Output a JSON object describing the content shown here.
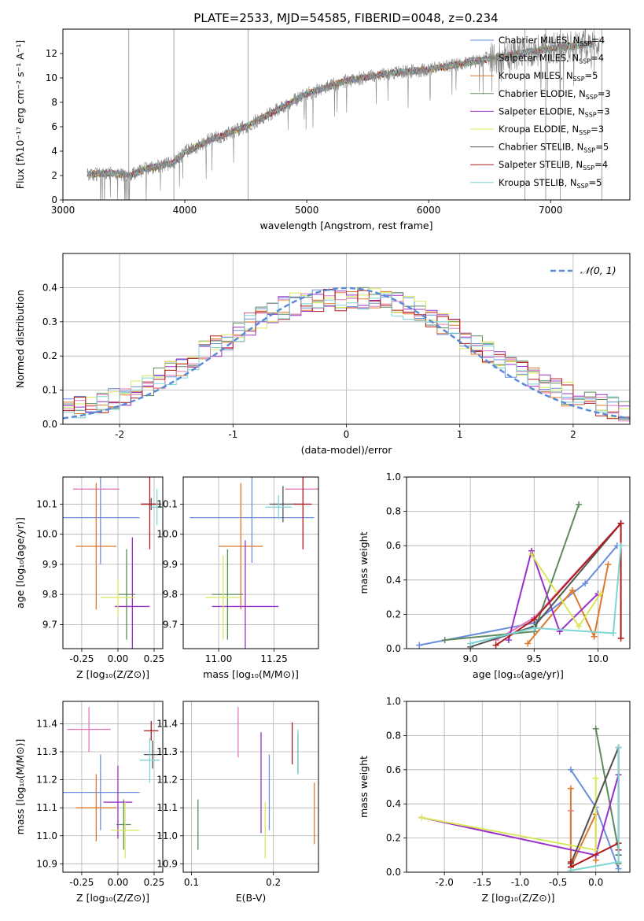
{
  "figure_title": "PLATE=2533, MJD=54585, FIBERID=0048, z=0.234",
  "model_names": [
    "Chabrier MILES",
    "Salpeter MILES",
    "Kroupa MILES",
    "Chabrier ELODIE",
    "Salpeter ELODIE",
    "Kroupa ELODIE",
    "Chabrier STELIB",
    "Salpeter STELIB",
    "Kroupa STELIB"
  ],
  "model_colors": [
    "#6a8fdc",
    "#777777",
    "#e0782a",
    "#5e8a5e",
    "#9b30c9",
    "#d8e85a",
    "#555555",
    "#b01a1a",
    "#7fd4d4"
  ],
  "chart_data": [
    {
      "panel": "spectrum",
      "type": "line",
      "xlabel": "wavelength [Angstrom, rest frame]",
      "ylabel": "Flux [fλ10⁻¹⁷ erg cm⁻² s⁻¹ A⁻¹]",
      "xlim": [
        3000,
        7650
      ],
      "ylim": [
        0,
        14
      ],
      "xticks": [
        3000,
        4000,
        5000,
        6000,
        7000
      ],
      "yticks": [
        0,
        2,
        4,
        6,
        8,
        10,
        12
      ],
      "grid": false,
      "legend_position": "top-right",
      "legend": [
        {
          "label": "Chabrier MILES, N",
          "sub": "SSP",
          "suffix": "=4"
        },
        {
          "label": "Salpeter MILES, N",
          "sub": "SSP",
          "suffix": "=4"
        },
        {
          "label": "Kroupa MILES, N",
          "sub": "SSP",
          "suffix": "=5"
        },
        {
          "label": "Chabrier ELODIE, N",
          "sub": "SSP",
          "suffix": "=3"
        },
        {
          "label": "Salpeter ELODIE, N",
          "sub": "SSP",
          "suffix": "=3"
        },
        {
          "label": "Kroupa ELODIE, N",
          "sub": "SSP",
          "suffix": "=3"
        },
        {
          "label": "Chabrier STELIB, N",
          "sub": "SSP",
          "suffix": "=5"
        },
        {
          "label": "Salpeter STELIB, N",
          "sub": "SSP",
          "suffix": "=4"
        },
        {
          "label": "Kroupa STELIB, N",
          "sub": "SSP",
          "suffix": "=5"
        }
      ],
      "continuum": {
        "x": [
          3200,
          3400,
          3550,
          3700,
          3900,
          4000,
          4200,
          4500,
          4800,
          5000,
          5300,
          5600,
          6000,
          6300,
          6600,
          7000,
          7350
        ],
        "y": [
          2.1,
          2.2,
          2.0,
          2.6,
          3.0,
          3.9,
          4.9,
          6.0,
          7.6,
          8.7,
          9.7,
          10.3,
          10.7,
          11.2,
          11.8,
          12.4,
          12.8
        ]
      }
    },
    {
      "panel": "residuals",
      "type": "histogram",
      "xlabel": "(data-model)/error",
      "ylabel": "Normed distribution",
      "xlim": [
        -2.5,
        2.5
      ],
      "ylim": [
        0,
        0.5
      ],
      "xticks": [
        -2,
        -1,
        0,
        1,
        2
      ],
      "yticks": [
        0.0,
        0.1,
        0.2,
        0.3,
        0.4
      ],
      "grid": true,
      "legend_position": "top-right",
      "reference_curve": {
        "label": "𝒩(0, 1)",
        "mean": 0,
        "sigma": 1
      },
      "bins": {
        "start": -2.5,
        "width": 0.1,
        "count": 50
      }
    },
    {
      "panel": "age_vs_Z",
      "type": "errorbar",
      "xlabel": "Z [log₁₀(Z/Z⊙)]",
      "ylabel": "age  [log₁₀(age/yr)]",
      "xlim": [
        -0.38,
        0.31
      ],
      "ylim": [
        9.62,
        10.19
      ],
      "xticks": [
        -0.25,
        0.0,
        0.25
      ],
      "yticks": [
        9.7,
        9.8,
        9.9,
        10.0,
        10.1
      ],
      "grid": true,
      "points": [
        {
          "x": -0.12,
          "y": 10.055,
          "ex": 0.27,
          "ey": 0.155
        },
        {
          "x": -0.15,
          "y": 10.15,
          "ex": 0.16,
          "ey": 0.0
        },
        {
          "x": -0.15,
          "y": 9.96,
          "ex": 0.14,
          "ey": 0.21
        },
        {
          "x": 0.06,
          "y": 9.8,
          "ex": 0.06,
          "ey": 0.15
        },
        {
          "x": 0.1,
          "y": 9.76,
          "ex": 0.12,
          "ey": 0.23
        },
        {
          "x": 0.0,
          "y": 9.79,
          "ex": 0.12,
          "ey": 0.06
        },
        {
          "x": 0.23,
          "y": 10.1,
          "ex": 0.07,
          "ey": 0.02
        },
        {
          "x": 0.22,
          "y": 10.1,
          "ex": 0.06,
          "ey": 0.15
        },
        {
          "x": 0.27,
          "y": 10.09,
          "ex": 0.04,
          "ey": 0.06
        }
      ]
    },
    {
      "panel": "age_vs_mass",
      "type": "errorbar",
      "xlabel": "mass [log₁₀(M/M⊙)]",
      "ylabel": "",
      "xlim": [
        10.84,
        11.45
      ],
      "ylim": [
        9.62,
        10.19
      ],
      "xticks": [
        11.0,
        11.25
      ],
      "yticks": [
        9.7,
        9.8,
        9.9,
        10.0,
        10.1
      ],
      "grid": true,
      "points": [
        {
          "x": 11.15,
          "y": 10.055,
          "ex": 0.28,
          "ey": 0.15
        },
        {
          "x": 11.38,
          "y": 10.15,
          "ex": 0.08,
          "ey": 0.0
        },
        {
          "x": 11.1,
          "y": 9.96,
          "ex": 0.1,
          "ey": 0.21
        },
        {
          "x": 11.04,
          "y": 9.8,
          "ex": 0.07,
          "ey": 0.15
        },
        {
          "x": 11.12,
          "y": 9.76,
          "ex": 0.15,
          "ey": 0.22
        },
        {
          "x": 11.02,
          "y": 9.79,
          "ex": 0.08,
          "ey": 0.14
        },
        {
          "x": 11.29,
          "y": 10.1,
          "ex": 0.06,
          "ey": 0.06
        },
        {
          "x": 11.38,
          "y": 10.1,
          "ex": 0.04,
          "ey": 0.15
        },
        {
          "x": 11.27,
          "y": 10.09,
          "ex": 0.06,
          "ey": 0.04
        }
      ]
    },
    {
      "panel": "weight_vs_age",
      "type": "line",
      "xlabel": "age  [log₁₀(age/yr)]",
      "ylabel": "mass weight",
      "xlim": [
        8.5,
        10.25
      ],
      "ylim": [
        0,
        1
      ],
      "xticks": [
        9.0,
        9.5,
        10.0
      ],
      "yticks": [
        0.0,
        0.2,
        0.4,
        0.6,
        0.8,
        1.0
      ],
      "grid": true,
      "series": [
        {
          "x": [
            8.6,
            9.5,
            9.9,
            10.15
          ],
          "y": [
            0.02,
            0.15,
            0.38,
            0.6
          ]
        },
        {
          "x": [
            9.2,
            9.5,
            10.18
          ],
          "y": [
            0.05,
            0.18,
            0.73
          ]
        },
        {
          "x": [
            9.45,
            9.8,
            9.97,
            10.08
          ],
          "y": [
            0.03,
            0.34,
            0.07,
            0.49
          ]
        },
        {
          "x": [
            8.8,
            9.5,
            9.85
          ],
          "y": [
            0.05,
            0.1,
            0.84
          ]
        },
        {
          "x": [
            9.3,
            9.48,
            9.7,
            10.0
          ],
          "y": [
            0.05,
            0.57,
            0.1,
            0.32
          ]
        },
        {
          "x": [
            9.48,
            9.85,
            10.02
          ],
          "y": [
            0.55,
            0.13,
            0.32
          ]
        },
        {
          "x": [
            9.0,
            9.5,
            10.18
          ],
          "y": [
            0.01,
            0.13,
            0.73
          ]
        },
        {
          "x": [
            9.2,
            9.5,
            10.18,
            10.18
          ],
          "y": [
            0.02,
            0.17,
            0.73,
            0.06
          ]
        },
        {
          "x": [
            9.0,
            9.5,
            10.12,
            10.18
          ],
          "y": [
            0.03,
            0.12,
            0.09,
            0.6
          ]
        }
      ]
    },
    {
      "panel": "mass_vs_Z",
      "type": "errorbar",
      "xlabel": "Z [log₁₀(Z/Z⊙)]",
      "ylabel": "mass [log₁₀(M/M⊙)]",
      "xlim": [
        -0.38,
        0.31
      ],
      "ylim": [
        10.87,
        11.48
      ],
      "xticks": [
        -0.25,
        0.0,
        0.25
      ],
      "yticks": [
        10.9,
        11.0,
        11.1,
        11.2,
        11.3,
        11.4
      ],
      "grid": true,
      "points": [
        {
          "x": -0.12,
          "y": 11.155,
          "ex": 0.27,
          "ey": 0.135
        },
        {
          "x": -0.2,
          "y": 11.38,
          "ex": 0.15,
          "ey": 0.08
        },
        {
          "x": -0.15,
          "y": 11.1,
          "ex": 0.14,
          "ey": 0.12
        },
        {
          "x": 0.04,
          "y": 11.04,
          "ex": 0.05,
          "ey": 0.09
        },
        {
          "x": 0.0,
          "y": 11.12,
          "ex": 0.1,
          "ey": 0.13
        },
        {
          "x": 0.05,
          "y": 11.02,
          "ex": 0.1,
          "ey": 0.1
        },
        {
          "x": 0.24,
          "y": 11.29,
          "ex": 0.06,
          "ey": 0.05
        },
        {
          "x": 0.23,
          "y": 11.375,
          "ex": 0.05,
          "ey": 0.035
        },
        {
          "x": 0.22,
          "y": 11.27,
          "ex": 0.07,
          "ey": 0.08
        }
      ]
    },
    {
      "panel": "mass_vs_EBV",
      "type": "errorbar",
      "xlabel": "E(B-V)",
      "ylabel": "",
      "xlim": [
        0.09,
        0.255
      ],
      "ylim": [
        10.87,
        11.48
      ],
      "xticks": [
        0.1,
        0.2
      ],
      "yticks": [
        10.9,
        11.0,
        11.1,
        11.2,
        11.3,
        11.4
      ],
      "grid": true,
      "points": [
        {
          "x": 0.195,
          "y": 11.155,
          "ex": 0,
          "ey": 0.135
        },
        {
          "x": 0.157,
          "y": 11.37,
          "ex": 0,
          "ey": 0.09
        },
        {
          "x": 0.25,
          "y": 11.08,
          "ex": 0,
          "ey": 0.11
        },
        {
          "x": 0.108,
          "y": 11.04,
          "ex": 0,
          "ey": 0.09
        },
        {
          "x": 0.185,
          "y": 11.19,
          "ex": 0,
          "ey": 0.18
        },
        {
          "x": 0.19,
          "y": 11.02,
          "ex": 0,
          "ey": 0.1
        },
        {
          "x": 0.23,
          "y": 11.29,
          "ex": 0,
          "ey": 0.07
        },
        {
          "x": 0.223,
          "y": 11.33,
          "ex": 0,
          "ey": 0.075
        },
        {
          "x": 0.23,
          "y": 11.3,
          "ex": 0,
          "ey": 0.08
        }
      ]
    },
    {
      "panel": "weight_vs_Z",
      "type": "line",
      "xlabel": "Z [log₁₀(Z/Z⊙)]",
      "ylabel": "mass weight",
      "xlim": [
        -2.5,
        0.45
      ],
      "ylim": [
        0,
        1
      ],
      "xticks": [
        -2.0,
        -1.5,
        -1.0,
        -0.5,
        0.0
      ],
      "yticks": [
        0.0,
        0.2,
        0.4,
        0.6,
        0.8,
        1.0
      ],
      "grid": true,
      "series": [
        {
          "x": [
            -0.33,
            0.0,
            0.3
          ],
          "y": [
            0.6,
            0.38,
            0.02
          ]
        },
        {
          "x": [
            -0.33,
            -0.33,
            0.3,
            0.3
          ],
          "y": [
            0.36,
            0.05,
            0.73,
            0.1
          ]
        },
        {
          "x": [
            -0.33,
            -0.33,
            0.0,
            0.0
          ],
          "y": [
            0.49,
            0.03,
            0.34,
            0.07
          ]
        },
        {
          "x": [
            0.0,
            0.3,
            0.3
          ],
          "y": [
            0.84,
            0.13,
            0.05
          ]
        },
        {
          "x": [
            -2.3,
            0.0,
            0.3
          ],
          "y": [
            0.32,
            0.1,
            0.57
          ]
        },
        {
          "x": [
            -2.3,
            0.0,
            0.0
          ],
          "y": [
            0.32,
            0.13,
            0.55
          ]
        },
        {
          "x": [
            -0.33,
            0.3,
            0.3
          ],
          "y": [
            0.05,
            0.73,
            0.1
          ]
        },
        {
          "x": [
            -0.33,
            -0.33,
            0.3,
            0.3
          ],
          "y": [
            0.06,
            0.03,
            0.17,
            0.13
          ]
        },
        {
          "x": [
            -0.33,
            0.3,
            0.3
          ],
          "y": [
            0.01,
            0.06,
            0.73
          ]
        }
      ]
    }
  ]
}
